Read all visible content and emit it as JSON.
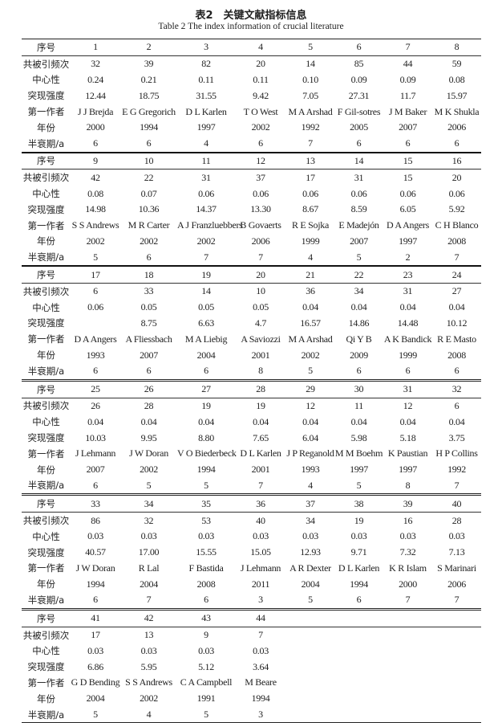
{
  "title": "表2　关键文献指标信息",
  "subtitle": "Table 2   The index information of crucial literature",
  "row_labels": [
    "序号",
    "共被引频次",
    "中心性",
    "突现强度",
    "第一作者",
    "年份",
    "半衰期/a"
  ],
  "blocks": [
    {
      "columns": [
        [
          "1",
          "32",
          "0.24",
          "12.44",
          "J J Brejda",
          "2000",
          "6"
        ],
        [
          "2",
          "39",
          "0.21",
          "18.75",
          "E G Gregorich",
          "1994",
          "6"
        ],
        [
          "3",
          "82",
          "0.11",
          "31.55",
          "D L Karlen",
          "1997",
          "4"
        ],
        [
          "4",
          "20",
          "0.11",
          "9.42",
          "T O West",
          "2002",
          "6"
        ],
        [
          "5",
          "14",
          "0.10",
          "7.05",
          "M A Arshad",
          "1992",
          "7"
        ],
        [
          "6",
          "85",
          "0.09",
          "27.31",
          "F Gil-sotres",
          "2005",
          "6"
        ],
        [
          "7",
          "44",
          "0.09",
          "11.7",
          "J M Baker",
          "2007",
          "6"
        ],
        [
          "8",
          "59",
          "0.08",
          "15.97",
          "M K Shukla",
          "2006",
          "6"
        ]
      ]
    },
    {
      "columns": [
        [
          "9",
          "42",
          "0.08",
          "14.98",
          "S S Andrews",
          "2002",
          "5"
        ],
        [
          "10",
          "22",
          "0.07",
          "10.36",
          "M R Carter",
          "2002",
          "6"
        ],
        [
          "11",
          "31",
          "0.06",
          "14.37",
          "A J Franzluebbers",
          "2002",
          "7"
        ],
        [
          "12",
          "37",
          "0.06",
          "13.30",
          "B Govaerts",
          "2006",
          "7"
        ],
        [
          "13",
          "17",
          "0.06",
          "8.67",
          "R E Sojka",
          "1999",
          "4"
        ],
        [
          "14",
          "31",
          "0.06",
          "8.59",
          "E Madejón",
          "2007",
          "5"
        ],
        [
          "15",
          "15",
          "0.06",
          "6.05",
          "D A Angers",
          "1997",
          "2"
        ],
        [
          "16",
          "20",
          "0.06",
          "5.92",
          "C H Blanco",
          "2008",
          "7"
        ]
      ]
    },
    {
      "columns": [
        [
          "17",
          "6",
          "0.06",
          "",
          "D A Angers",
          "1993",
          "6"
        ],
        [
          "18",
          "33",
          "0.05",
          "8.75",
          "A Fliessbach",
          "2007",
          "6"
        ],
        [
          "19",
          "14",
          "0.05",
          "6.63",
          "M A Liebig",
          "2004",
          "6"
        ],
        [
          "20",
          "10",
          "0.05",
          "4.7",
          "A Saviozzi",
          "2001",
          "8"
        ],
        [
          "21",
          "36",
          "0.04",
          "16.57",
          "M A Arshad",
          "2002",
          "5"
        ],
        [
          "22",
          "34",
          "0.04",
          "14.86",
          "Qi Y B",
          "2009",
          "6"
        ],
        [
          "23",
          "31",
          "0.04",
          "14.48",
          "A K Bandick",
          "1999",
          "6"
        ],
        [
          "24",
          "27",
          "0.04",
          "10.12",
          "R E Masto",
          "2008",
          "6"
        ]
      ]
    },
    {
      "columns": [
        [
          "25",
          "26",
          "0.04",
          "10.03",
          "J Lehmann",
          "2007",
          "6"
        ],
        [
          "26",
          "28",
          "0.04",
          "9.95",
          "J W Doran",
          "2002",
          "5"
        ],
        [
          "27",
          "19",
          "0.04",
          "8.80",
          "V O Biederbeck",
          "1994",
          "5"
        ],
        [
          "28",
          "19",
          "0.04",
          "7.65",
          "D L Karlen",
          "2001",
          "7"
        ],
        [
          "29",
          "12",
          "0.04",
          "6.04",
          "J P Reganold",
          "1993",
          "4"
        ],
        [
          "30",
          "11",
          "0.04",
          "5.98",
          "M M Boehm",
          "1997",
          "5"
        ],
        [
          "31",
          "12",
          "0.04",
          "5.18",
          "K Paustian",
          "1997",
          "8"
        ],
        [
          "32",
          "6",
          "0.04",
          "3.75",
          "H P Collins",
          "1992",
          "7"
        ]
      ]
    },
    {
      "columns": [
        [
          "33",
          "86",
          "0.03",
          "40.57",
          "J W Doran",
          "1994",
          "6"
        ],
        [
          "34",
          "32",
          "0.03",
          "17.00",
          "R Lal",
          "2004",
          "7"
        ],
        [
          "35",
          "53",
          "0.03",
          "15.55",
          "F Bastida",
          "2008",
          "6"
        ],
        [
          "36",
          "40",
          "0.03",
          "15.05",
          "J Lehmann",
          "2011",
          "3"
        ],
        [
          "37",
          "34",
          "0.03",
          "12.93",
          "A R Dexter",
          "2004",
          "5"
        ],
        [
          "38",
          "19",
          "0.03",
          "9.71",
          "D L Karlen",
          "1994",
          "6"
        ],
        [
          "39",
          "16",
          "0.03",
          "7.32",
          "K R Islam",
          "2000",
          "7"
        ],
        [
          "40",
          "28",
          "0.03",
          "7.13",
          "S Marinari",
          "2006",
          "7"
        ]
      ]
    },
    {
      "columns": [
        [
          "41",
          "17",
          "0.03",
          "6.86",
          "G D Bending",
          "2004",
          "5"
        ],
        [
          "42",
          "13",
          "0.03",
          "5.95",
          "S S Andrews",
          "2002",
          "4"
        ],
        [
          "43",
          "9",
          "0.03",
          "5.12",
          "C A Campbell",
          "1991",
          "5"
        ],
        [
          "44",
          "7",
          "0.03",
          "3.64",
          "M Beare",
          "1994",
          "3"
        ]
      ]
    }
  ]
}
